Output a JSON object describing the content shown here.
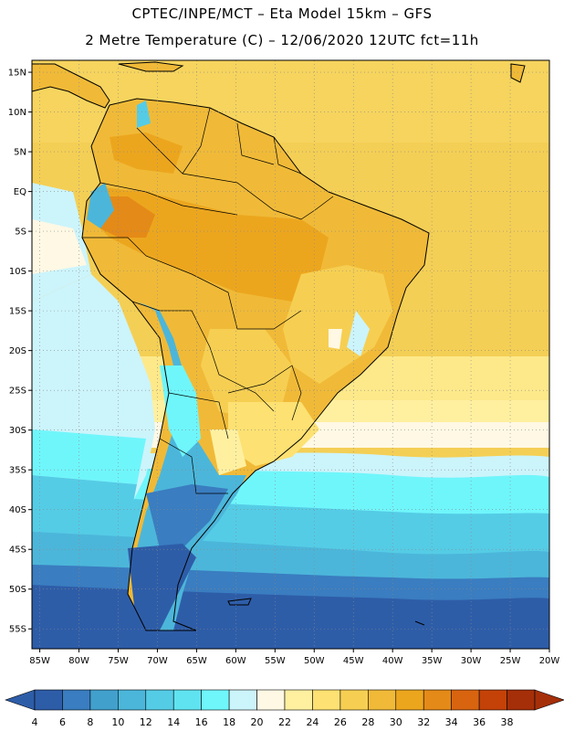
{
  "header": {
    "line1": "CPTEC/INPE/MCT –  Eta Model 15km – GFS",
    "line2": "2 Metre Temperature (C) – 12/06/2020 12UTC fct=11h"
  },
  "map": {
    "lat_labels": [
      "15N",
      "10N",
      "5N",
      "EQ",
      "5S",
      "10S",
      "15S",
      "20S",
      "25S",
      "30S",
      "35S",
      "40S",
      "45S",
      "50S",
      "55S"
    ],
    "lon_labels": [
      "85W",
      "80W",
      "75W",
      "70W",
      "65W",
      "60W",
      "55W",
      "50W",
      "45W",
      "40W",
      "35W",
      "30W",
      "25W",
      "20W"
    ],
    "lat_range": [
      -57.5,
      16.5
    ],
    "lon_range": [
      -86,
      -20
    ]
  },
  "colorbar": {
    "labels": [
      "4",
      "6",
      "8",
      "10",
      "12",
      "14",
      "16",
      "18",
      "20",
      "22",
      "24",
      "26",
      "28",
      "30",
      "32",
      "34",
      "36",
      "38"
    ],
    "colors": [
      "#2e5da8",
      "#3a7dc0",
      "#42a0cc",
      "#4cb6da",
      "#55cce6",
      "#60e3f0",
      "#6ff6fb",
      "#ccf4fb",
      "#fff8e4",
      "#fff0a0",
      "#fde172",
      "#f6cf52",
      "#f0ba38",
      "#eca61e",
      "#e48a18",
      "#d86410",
      "#c44208",
      "#a52f08"
    ]
  }
}
